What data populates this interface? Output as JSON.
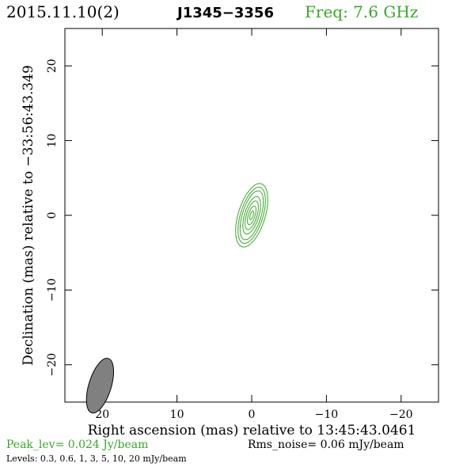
{
  "header": {
    "date": "2015.11.10(2)",
    "source": "J1345−3356",
    "freq": "Freq: 7.6 GHz"
  },
  "footer": {
    "peak": "Peak_lev=  0.024 Jy/beam",
    "rms": "Rms_noise= 0.06 mJy/beam",
    "levels": "Levels: 0.3, 0.6,    1,    3,    5,   10,   20 mJy/beam"
  },
  "colors": {
    "accent": "#3aa52a",
    "axis": "#000000",
    "beam_fill": "#808080"
  },
  "chart_data": {
    "type": "contour",
    "xlabel": "Right ascension (mas) relative to 13:45:43.0461",
    "ylabel": "Declination (mas) relative to −33:56:43.349",
    "xlim": [
      25,
      -25
    ],
    "ylim": [
      -25,
      25
    ],
    "x_ticks": [
      20,
      10,
      0,
      -10,
      -20
    ],
    "x_tick_labels": [
      "20",
      "10",
      "0",
      "−10",
      "−20"
    ],
    "y_ticks": [
      20,
      10,
      0,
      -10,
      -20
    ],
    "y_tick_labels": [
      "20",
      "10",
      "0",
      "−10",
      "−20"
    ],
    "contour_levels_mjy": [
      0.3,
      0.6,
      1,
      3,
      5,
      10,
      20
    ],
    "peak_jy_per_beam": 0.024,
    "rms_mjy_per_beam": 0.06,
    "source_center": [
      0,
      0
    ],
    "source_pa_deg": 17,
    "contours": [
      {
        "level": 0.3,
        "semi_major": 4.4,
        "semi_minor": 1.8
      },
      {
        "level": 0.6,
        "semi_major": 3.9,
        "semi_minor": 1.5
      },
      {
        "level": 1,
        "semi_major": 3.4,
        "semi_minor": 1.25
      },
      {
        "level": 3,
        "semi_major": 2.6,
        "semi_minor": 0.95
      },
      {
        "level": 5,
        "semi_major": 2.0,
        "semi_minor": 0.7
      },
      {
        "level": 10,
        "semi_major": 1.3,
        "semi_minor": 0.45
      },
      {
        "level": 20,
        "semi_major": 0.6,
        "semi_minor": 0.2
      }
    ],
    "beam": {
      "center": [
        20.3,
        -22.8
      ],
      "major": 3.8,
      "minor": 1.5,
      "pa_deg": 17
    }
  }
}
